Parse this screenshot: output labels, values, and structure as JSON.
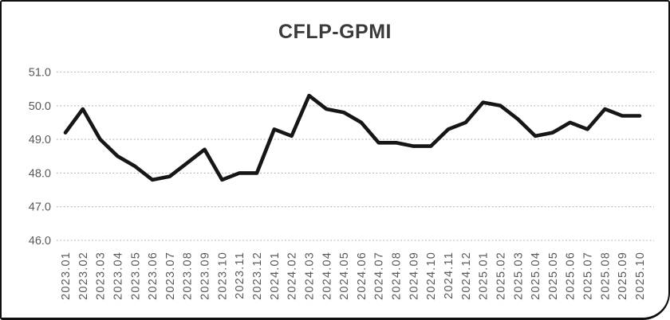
{
  "chart_data": {
    "type": "line",
    "title": "CFLP-GPMI",
    "x": [
      "2023.01",
      "2023.02",
      "2023.03",
      "2023.04",
      "2023.05",
      "2023.06",
      "2023.07",
      "2023.08",
      "2023.09",
      "2023.10",
      "2023.11",
      "2023.12",
      "2024.01",
      "2024.02",
      "2024.03",
      "2024.04",
      "2024.05",
      "2024.06",
      "2024.07",
      "2024.08",
      "2024.09",
      "2024.10",
      "2024.11",
      "2024.12",
      "2025.01",
      "2025.02",
      "2025.03",
      "2025.04",
      "2025.05",
      "2025.06",
      "2025.07",
      "2025.08",
      "2025.09",
      "2025.10"
    ],
    "series": [
      {
        "name": "CFLP-GPMI",
        "color": "#161616",
        "values": [
          49.2,
          49.9,
          49.0,
          48.5,
          48.2,
          47.8,
          47.9,
          48.3,
          48.7,
          47.8,
          48.0,
          48.0,
          49.3,
          49.1,
          50.3,
          49.9,
          49.8,
          49.5,
          48.9,
          48.9,
          48.8,
          48.8,
          49.3,
          49.5,
          50.1,
          50.0,
          49.6,
          49.1,
          49.2,
          49.5,
          49.3,
          49.9,
          49.7,
          49.7
        ]
      }
    ],
    "ylim": [
      46.0,
      51.0
    ],
    "yticks": [
      "51.0",
      "50.0",
      "49.0",
      "48.0",
      "47.0",
      "46.0"
    ],
    "xlabel": "",
    "ylabel": "",
    "legend": "none",
    "grid": "horizontal-dotted",
    "styles": {
      "grid_color": "#b3b3b3",
      "tick_label_color": "#595959",
      "title_color": "#3a3a3a",
      "background": "#ffffff",
      "frame_border_color": "#0f0f0f"
    }
  }
}
